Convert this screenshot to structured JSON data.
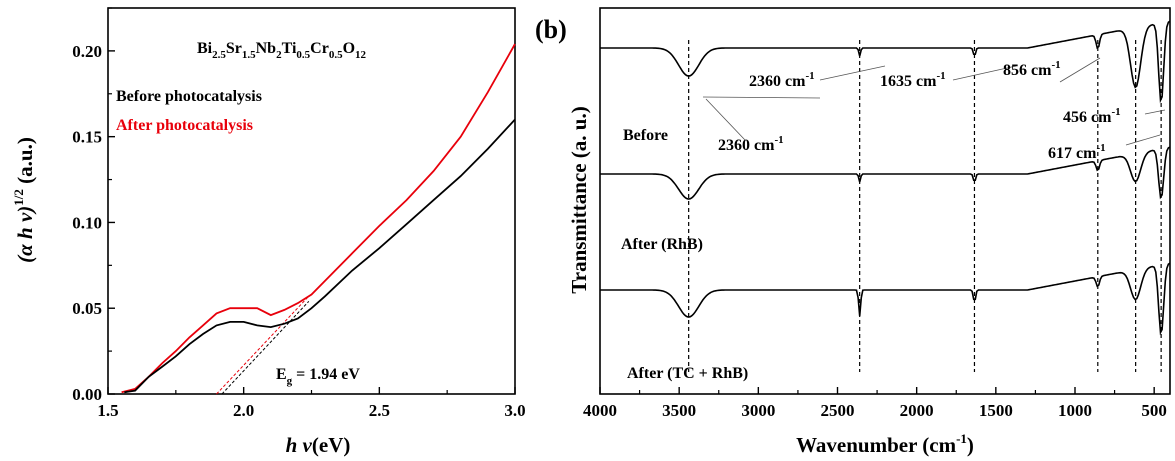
{
  "chart_data": [
    {
      "type": "line",
      "panel_label": "",
      "xlabel_main": "h ν",
      "xlabel_unit": "(eV)",
      "ylabel_main": "(α h ν)",
      "ylabel_sup": "1/2",
      "ylabel_unit": " (a.u.)",
      "xlim": [
        1.5,
        3.0
      ],
      "ylim": [
        0.0,
        0.225
      ],
      "xticks": [
        "1.5",
        "2.0",
        "2.5",
        "3.0"
      ],
      "yticks": [
        "0.00",
        "0.05",
        "0.10",
        "0.15",
        "0.20"
      ],
      "compound": {
        "parts": [
          {
            "t": "Bi",
            "sub": false
          },
          {
            "t": "2.5",
            "sub": true
          },
          {
            "t": "Sr",
            "sub": false
          },
          {
            "t": "1.5",
            "sub": true
          },
          {
            "t": "Nb",
            "sub": false
          },
          {
            "t": "2",
            "sub": true
          },
          {
            "t": "Ti",
            "sub": false
          },
          {
            "t": "0.5",
            "sub": true
          },
          {
            "t": "Cr",
            "sub": false
          },
          {
            "t": "0.5",
            "sub": true
          },
          {
            "t": "O",
            "sub": false
          },
          {
            "t": "12",
            "sub": true
          }
        ]
      },
      "series": [
        {
          "name": "Before photocatalysis",
          "color": "#000000",
          "x": [
            1.56,
            1.6,
            1.65,
            1.7,
            1.75,
            1.8,
            1.85,
            1.9,
            1.95,
            2.0,
            2.05,
            2.1,
            2.15,
            2.2,
            2.25,
            2.3,
            2.4,
            2.5,
            2.6,
            2.7,
            2.8,
            2.9,
            3.0
          ],
          "y": [
            0.001,
            0.002,
            0.01,
            0.016,
            0.022,
            0.029,
            0.035,
            0.04,
            0.042,
            0.042,
            0.04,
            0.039,
            0.041,
            0.044,
            0.05,
            0.057,
            0.072,
            0.085,
            0.099,
            0.113,
            0.127,
            0.143,
            0.16
          ]
        },
        {
          "name": "After photocatalysis",
          "color": "#e8000b",
          "x": [
            1.55,
            1.6,
            1.65,
            1.7,
            1.75,
            1.8,
            1.85,
            1.9,
            1.95,
            2.0,
            2.05,
            2.1,
            2.15,
            2.2,
            2.25,
            2.3,
            2.4,
            2.5,
            2.6,
            2.7,
            2.8,
            2.9,
            3.0
          ],
          "y": [
            0.001,
            0.003,
            0.01,
            0.018,
            0.025,
            0.033,
            0.04,
            0.047,
            0.05,
            0.05,
            0.05,
            0.046,
            0.049,
            0.053,
            0.058,
            0.066,
            0.082,
            0.098,
            0.113,
            0.13,
            0.15,
            0.176,
            0.204
          ]
        }
      ],
      "fits": [
        {
          "color": "#000000",
          "x": [
            1.92,
            2.24
          ],
          "y": [
            0.0,
            0.054
          ]
        },
        {
          "color": "#e8000b",
          "x": [
            1.9,
            2.24
          ],
          "y": [
            0.0,
            0.057
          ]
        }
      ],
      "annotation": {
        "main": "E",
        "sub": "g",
        "rest": " = 1.94 eV"
      }
    },
    {
      "type": "line",
      "panel_label": "(b)",
      "xlabel_main": "Wavenumber (cm",
      "xlabel_sup": "-1",
      "xlabel_end": ")",
      "ylabel": "Transmittance (a. u.)",
      "xlim": [
        4000,
        400
      ],
      "xticks": [
        "4000",
        "3500",
        "3000",
        "2500",
        "2000",
        "1500",
        "1000",
        "500"
      ],
      "xtick_values": [
        4000,
        3500,
        3000,
        2500,
        2000,
        1500,
        1000,
        500
      ],
      "dashed_lines": [
        3440,
        2360,
        1635,
        856,
        617,
        456
      ],
      "series": [
        {
          "name": "Before",
          "offset": 0.0
        },
        {
          "name": "After (RhB)",
          "offset": 1.0
        },
        {
          "name": "After (TC + RhB)",
          "offset": 2.0
        }
      ],
      "peak_labels": [
        {
          "text": "2360 cm",
          "sup": "-1"
        },
        {
          "text": "1635 cm",
          "sup": "-1"
        },
        {
          "text": "856 cm",
          "sup": "-1"
        },
        {
          "text": "456 cm",
          "sup": "-1"
        },
        {
          "text": "617 cm",
          "sup": "-1"
        },
        {
          "text": "2360 cm",
          "sup": "-1"
        }
      ]
    }
  ]
}
